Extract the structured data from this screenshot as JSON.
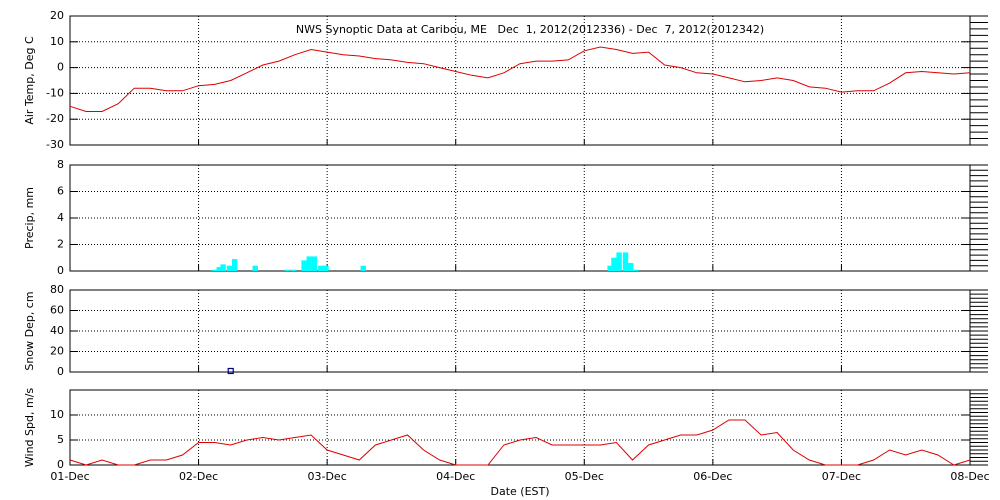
{
  "chart_data": [
    {
      "type": "line",
      "title": "NWS Synoptic Data at Caribou, ME   Dec  1, 2012(2012336) - Dec  7, 2012(2012342)",
      "ylabel": "Air Temp, Deg C",
      "color": "#dd0000",
      "grid": true,
      "xlim": [
        0,
        7
      ],
      "xticks": [
        0,
        1,
        2,
        3,
        4,
        5,
        6,
        7
      ],
      "ylim": [
        -30,
        20
      ],
      "yticks": [
        -30,
        -20,
        -10,
        0,
        10,
        20
      ],
      "x": [
        0,
        0.125,
        0.25,
        0.375,
        0.5,
        0.625,
        0.75,
        0.875,
        1,
        1.125,
        1.25,
        1.375,
        1.5,
        1.625,
        1.75,
        1.875,
        2,
        2.125,
        2.25,
        2.375,
        2.5,
        2.625,
        2.75,
        2.875,
        3,
        3.125,
        3.25,
        3.375,
        3.5,
        3.625,
        3.75,
        3.875,
        4,
        4.125,
        4.25,
        4.375,
        4.5,
        4.625,
        4.75,
        4.875,
        5,
        5.125,
        5.25,
        5.375,
        5.5,
        5.625,
        5.75,
        5.875,
        6,
        6.125,
        6.25,
        6.375,
        6.5,
        6.625,
        6.75,
        6.875,
        7
      ],
      "values": [
        -15,
        -17,
        -17,
        -14,
        -8,
        -8,
        -9,
        -9,
        -7,
        -6.5,
        -5,
        -2,
        1,
        2.5,
        5,
        7,
        6,
        5,
        4.5,
        3.5,
        3,
        2,
        1.5,
        0,
        -1.5,
        -3,
        -4,
        -2,
        1.5,
        2.5,
        2.5,
        3,
        6.5,
        8,
        7,
        5.5,
        6,
        1,
        0,
        -2,
        -2.5,
        -4,
        -5.5,
        -5,
        -4,
        -5,
        -7.5,
        -8,
        -9.5,
        -9,
        -9,
        -6,
        -2,
        -1.5,
        -2,
        -2.5,
        -2
      ]
    },
    {
      "type": "bar",
      "ylabel": "Precip, mm",
      "color": "#00ffff",
      "grid": true,
      "xlim": [
        0,
        7
      ],
      "xticks": [
        0,
        1,
        2,
        3,
        4,
        5,
        6,
        7
      ],
      "ylim": [
        0,
        8
      ],
      "yticks": [
        0,
        2,
        4,
        6,
        8
      ],
      "x": [
        1.1,
        1.14,
        1.17,
        1.22,
        1.26,
        1.42,
        1.67,
        1.72,
        1.8,
        1.84,
        1.88,
        1.93,
        1.97,
        2.26,
        4.18,
        4.21,
        4.25,
        4.3,
        4.34,
        4.38
      ],
      "values": [
        0.1,
        0.3,
        0.5,
        0.4,
        0.9,
        0.4,
        0.1,
        0.1,
        0.8,
        1.1,
        1.1,
        0.4,
        0.4,
        0.4,
        0.4,
        1.0,
        1.4,
        1.4,
        0.6,
        0.1
      ]
    },
    {
      "type": "scatter",
      "ylabel": "Snow Dep, cm",
      "color": "#000080",
      "grid": true,
      "xlim": [
        0,
        7
      ],
      "xticks": [
        0,
        1,
        2,
        3,
        4,
        5,
        6,
        7
      ],
      "ylim": [
        0,
        80
      ],
      "yticks": [
        0,
        20,
        40,
        60,
        80
      ],
      "x": [
        1.25
      ],
      "values": [
        1
      ]
    },
    {
      "type": "line",
      "ylabel": "Wind Spd, m/s",
      "xlabel": "Date (EST)",
      "color": "#dd0000",
      "grid": true,
      "xlim": [
        0,
        7
      ],
      "xticks": [
        {
          "value": 0,
          "label": "01-Dec"
        },
        {
          "value": 1,
          "label": "02-Dec"
        },
        {
          "value": 2,
          "label": "03-Dec"
        },
        {
          "value": 3,
          "label": "04-Dec"
        },
        {
          "value": 4,
          "label": "05-Dec"
        },
        {
          "value": 5,
          "label": "06-Dec"
        },
        {
          "value": 6,
          "label": "07-Dec"
        },
        {
          "value": 7,
          "label": "08-Dec"
        }
      ],
      "ylim": [
        0,
        15
      ],
      "yticks": [
        0,
        5,
        10
      ],
      "x": [
        0,
        0.125,
        0.25,
        0.375,
        0.5,
        0.625,
        0.75,
        0.875,
        1,
        1.125,
        1.25,
        1.375,
        1.5,
        1.625,
        1.75,
        1.875,
        2,
        2.125,
        2.25,
        2.375,
        2.5,
        2.625,
        2.75,
        2.875,
        3,
        3.125,
        3.25,
        3.375,
        3.5,
        3.625,
        3.75,
        3.875,
        4,
        4.125,
        4.25,
        4.375,
        4.5,
        4.625,
        4.75,
        4.875,
        5,
        5.125,
        5.25,
        5.375,
        5.5,
        5.625,
        5.75,
        5.875,
        6,
        6.125,
        6.25,
        6.375,
        6.5,
        6.625,
        6.75,
        6.875,
        7
      ],
      "values": [
        1,
        0,
        1,
        0,
        0,
        1,
        1,
        2,
        4.5,
        4.5,
        4,
        5,
        5.5,
        5,
        5.5,
        6,
        3,
        2,
        1,
        4,
        5,
        6,
        3,
        1,
        0,
        0,
        0,
        4,
        5,
        5.5,
        4,
        4,
        4,
        4,
        4.5,
        1,
        4,
        5,
        6,
        6,
        7,
        9,
        9,
        6,
        6.5,
        3,
        1,
        0,
        0,
        0,
        1,
        3,
        2,
        3,
        2,
        0,
        1
      ]
    }
  ]
}
